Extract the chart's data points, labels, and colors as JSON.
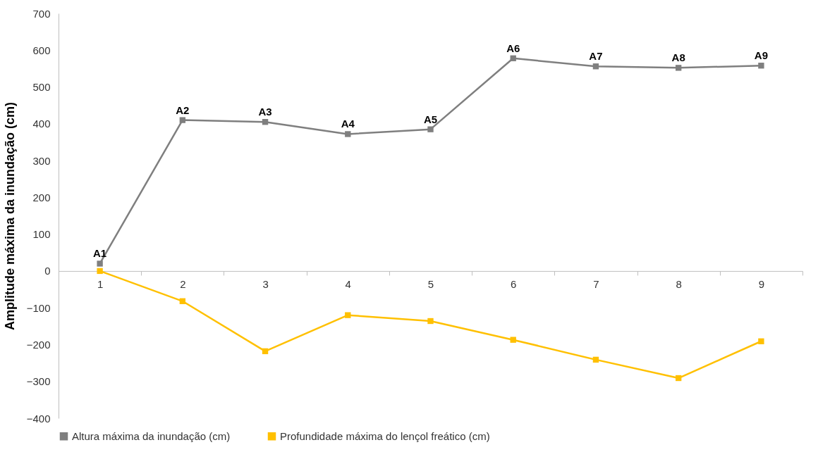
{
  "chart_data": {
    "type": "line",
    "ylabel": "Amplitude máxima da inundação (cm)",
    "categories": [
      "1",
      "2",
      "3",
      "4",
      "5",
      "6",
      "7",
      "8",
      "9"
    ],
    "series": [
      {
        "name": "Altura máxima da inundação (cm)",
        "color": "#7f7f7f",
        "values": [
          20,
          410,
          405,
          372,
          385,
          578,
          556,
          552,
          558
        ]
      },
      {
        "name": "Profundidade máxima do lençol freático (cm)",
        "color": "#ffc000",
        "values": [
          0,
          -82,
          -218,
          -120,
          -136,
          -187,
          -241,
          -291,
          -191
        ]
      }
    ],
    "annotations": [
      {
        "text": "A1",
        "x": "1",
        "y": 20
      },
      {
        "text": "A2",
        "x": "2",
        "y": 410
      },
      {
        "text": "A3",
        "x": "3",
        "y": 405
      },
      {
        "text": "A4",
        "x": "4",
        "y": 372
      },
      {
        "text": "A5",
        "x": "5",
        "y": 385
      },
      {
        "text": "A6",
        "x": "6",
        "y": 578
      },
      {
        "text": "A7",
        "x": "7",
        "y": 556
      },
      {
        "text": "A8",
        "x": "8",
        "y": 552
      },
      {
        "text": "A9",
        "x": "9",
        "y": 558
      }
    ],
    "ylim": [
      -400,
      700
    ],
    "yticks": [
      -400,
      -300,
      -200,
      -100,
      0,
      100,
      200,
      300,
      400,
      500,
      600,
      700
    ],
    "grid": false,
    "legend": "bottom",
    "marker": "square",
    "line_style": "solid"
  }
}
